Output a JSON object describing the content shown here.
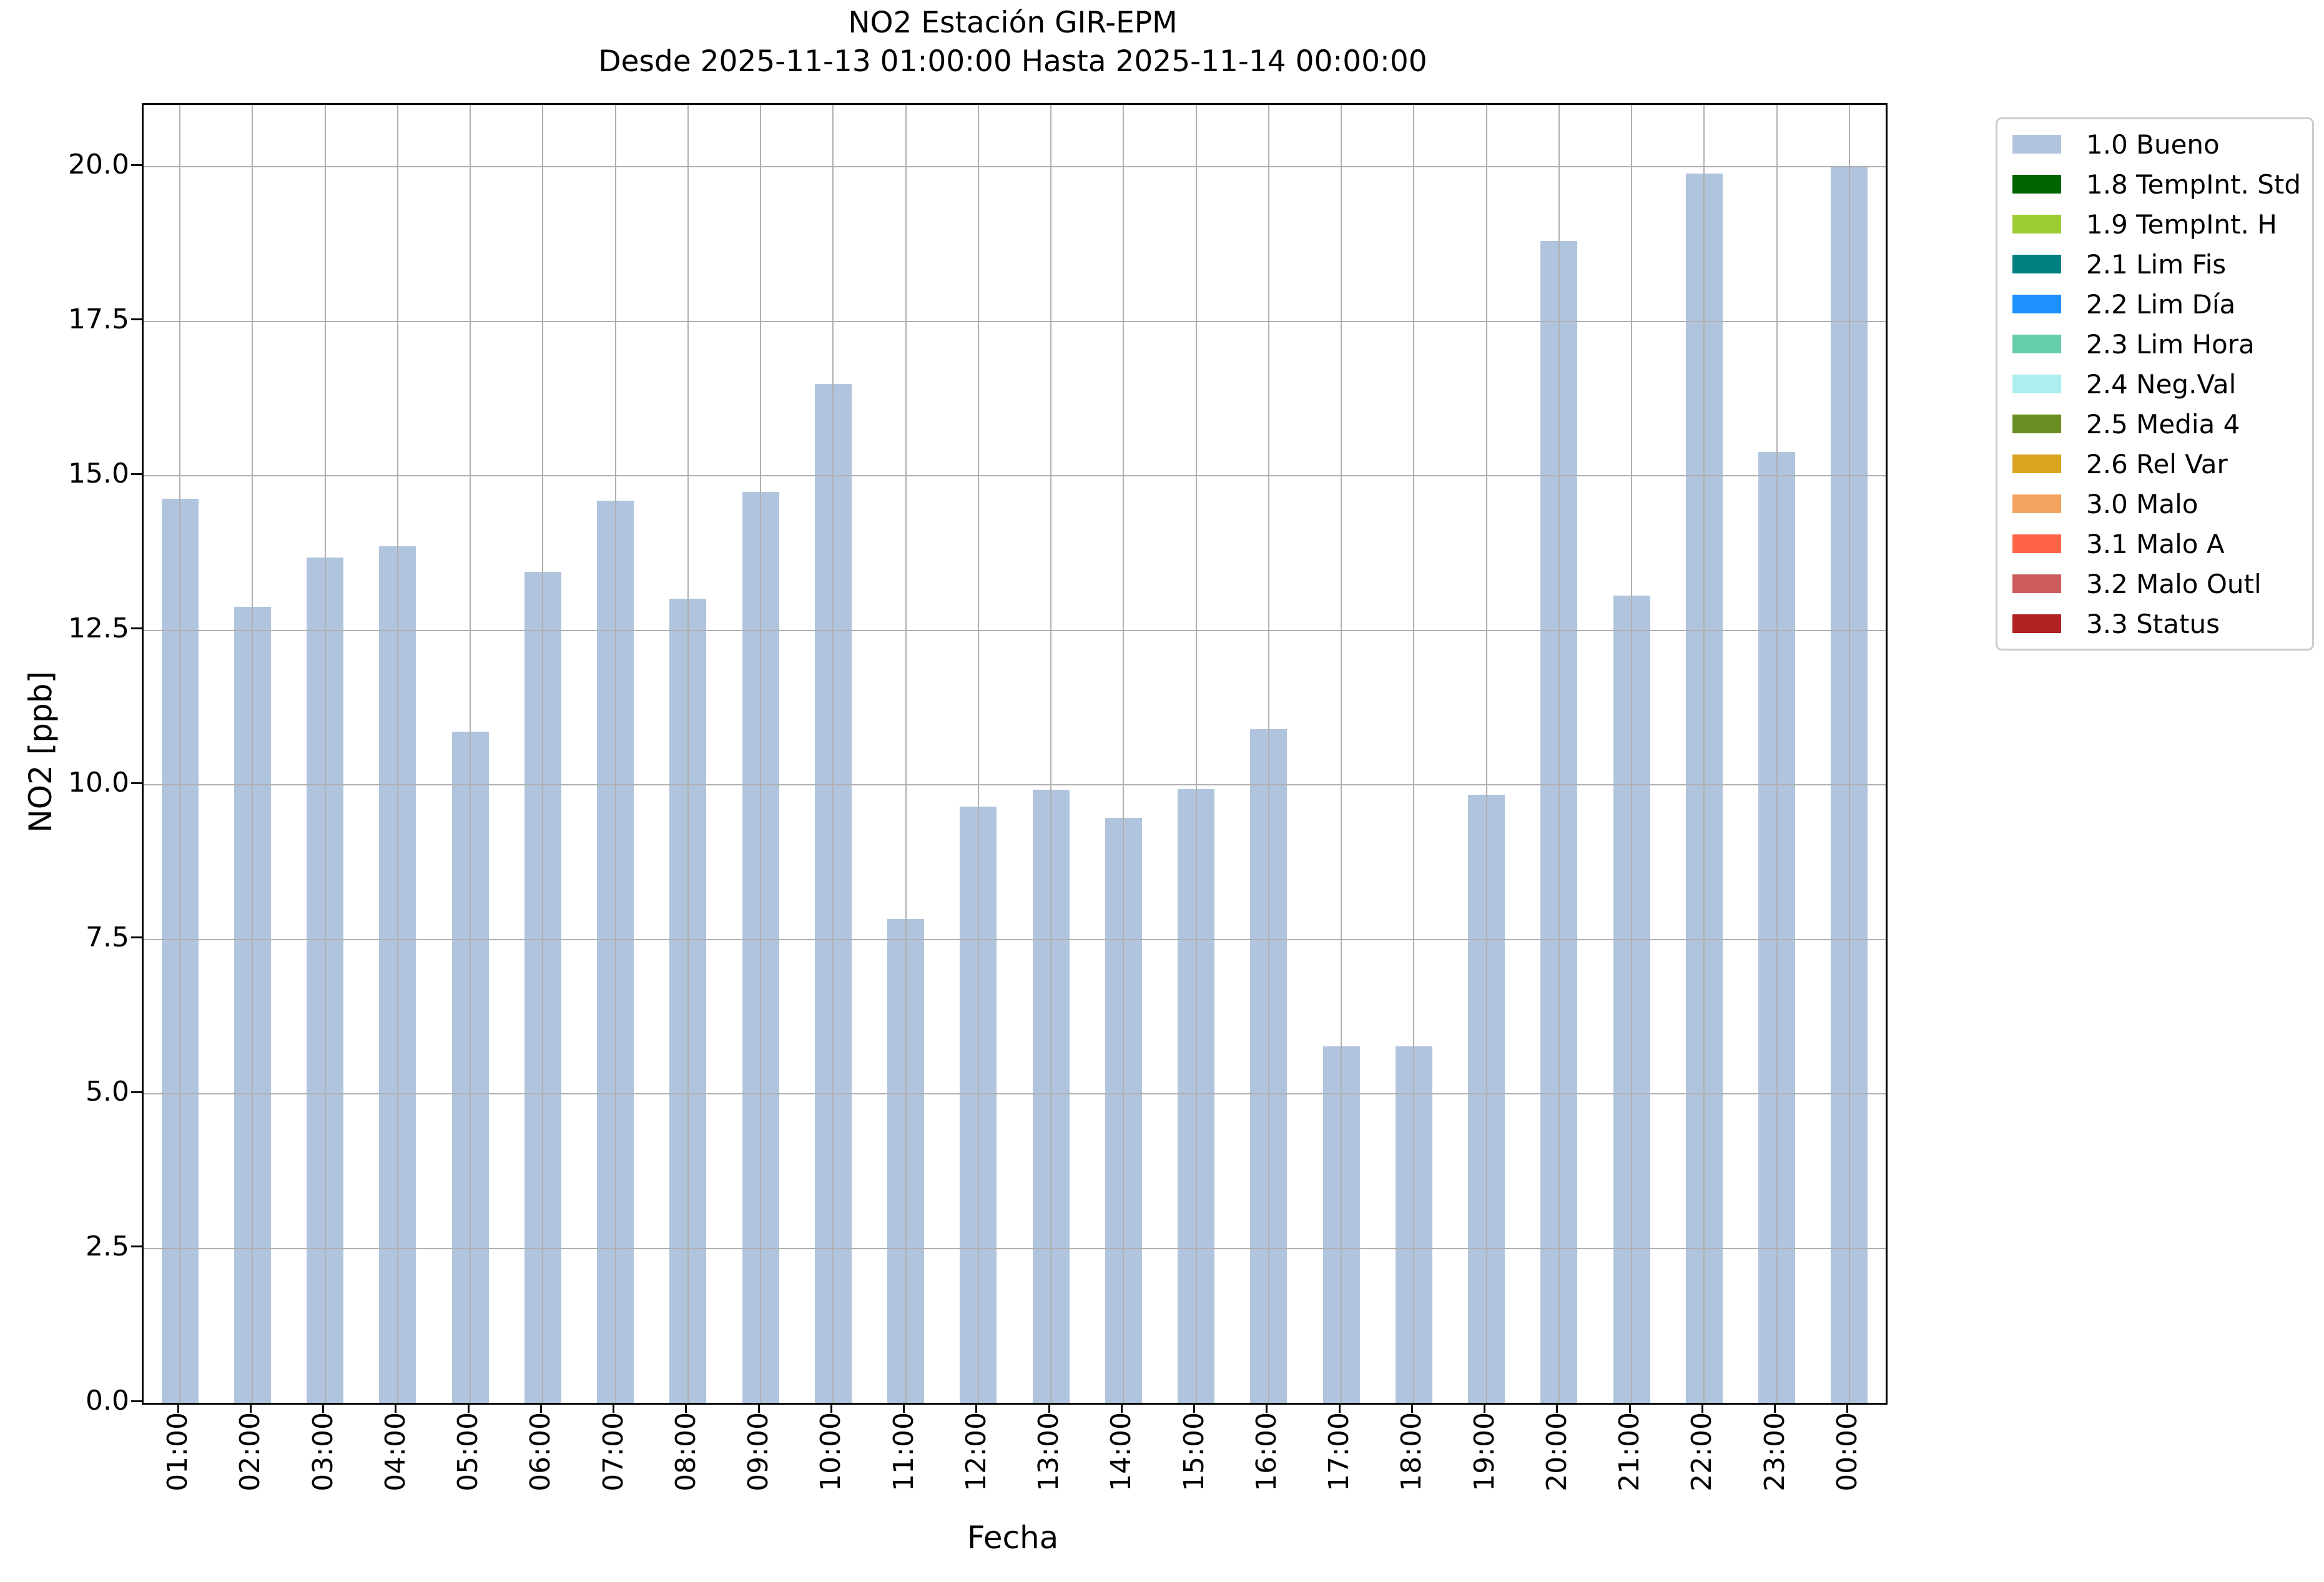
{
  "title": {
    "line1": "NO2 Estación GIR-EPM",
    "line2": "Desde 2025-11-13 01:00:00 Hasta 2025-11-14 00:00:00"
  },
  "axes": {
    "xlabel": "Fecha",
    "ylabel": "NO2 [ppb]"
  },
  "chart_data": {
    "type": "bar",
    "title": "NO2 Estación GIR-EPM",
    "subtitle": "Desde 2025-11-13 01:00:00 Hasta 2025-11-14 00:00:00",
    "xlabel": "Fecha",
    "ylabel": "NO2 [ppb]",
    "categories": [
      "01:00",
      "02:00",
      "03:00",
      "04:00",
      "05:00",
      "06:00",
      "07:00",
      "08:00",
      "09:00",
      "10:00",
      "11:00",
      "12:00",
      "13:00",
      "14:00",
      "15:00",
      "16:00",
      "17:00",
      "18:00",
      "19:00",
      "20:00",
      "21:00",
      "22:00",
      "23:00",
      "00:00"
    ],
    "series": [
      {
        "name": "1.0 Bueno",
        "color": "#b0c4de",
        "values": [
          14.63,
          12.88,
          13.68,
          13.86,
          10.86,
          13.44,
          14.6,
          13.01,
          14.74,
          16.49,
          7.83,
          9.65,
          9.92,
          9.46,
          9.93,
          10.9,
          5.77,
          5.77,
          9.84,
          18.8,
          13.06,
          19.89,
          15.38,
          19.99
        ]
      }
    ],
    "ylim": [
      0,
      21
    ],
    "ytick_labels": [
      "0.0",
      "2.5",
      "5.0",
      "7.5",
      "10.0",
      "12.5",
      "15.0",
      "17.5",
      "20.0"
    ],
    "grid": true,
    "grid_color": "#b0b0b0",
    "legend_position": "outside-top-right",
    "legend": {
      "entries": [
        {
          "label": "1.0 Bueno",
          "color": "#b0c4de"
        },
        {
          "label": "1.8 TempInt. Std",
          "color": "#006400"
        },
        {
          "label": "1.9 TempInt. H",
          "color": "#9acd32"
        },
        {
          "label": "2.1 Lim Fis",
          "color": "#008080"
        },
        {
          "label": "2.2 Lim Día",
          "color": "#1e90ff"
        },
        {
          "label": "2.3 Lim Hora",
          "color": "#66cdaa"
        },
        {
          "label": "2.4 Neg.Val",
          "color": "#afeeee"
        },
        {
          "label": "2.5 Media 4",
          "color": "#6b8e23"
        },
        {
          "label": "2.6 Rel Var",
          "color": "#daa520"
        },
        {
          "label": "3.0 Malo",
          "color": "#f4a460"
        },
        {
          "label": "3.1 Malo A",
          "color": "#ff6347"
        },
        {
          "label": "3.2 Malo Outl",
          "color": "#cd5c5c"
        },
        {
          "label": "3.3 Status",
          "color": "#b22222"
        }
      ]
    }
  }
}
